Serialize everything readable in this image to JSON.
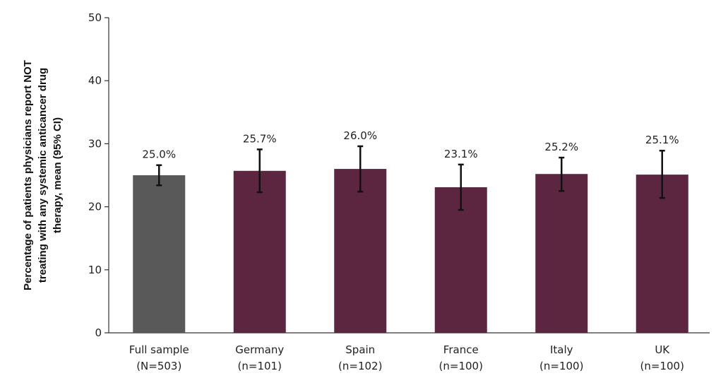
{
  "chart_data": {
    "type": "bar",
    "ylabel_lines": [
      "Percentage of patients physicians report NOT",
      "treating with any systemic anticancer drug",
      "therapy, mean (95% CI)"
    ],
    "ylim": [
      0,
      50
    ],
    "yticks": [
      "0",
      "10",
      "20",
      "30",
      "40",
      "50"
    ],
    "categories": [
      {
        "name": "Full sample",
        "n": "(N=503)"
      },
      {
        "name": "Germany",
        "n": "(n=101)"
      },
      {
        "name": "Spain",
        "n": "(n=102)"
      },
      {
        "name": "France",
        "n": "(n=100)"
      },
      {
        "name": "Italy",
        "n": "(n=100)"
      },
      {
        "name": "UK",
        "n": "(n=100)"
      }
    ],
    "values": [
      25.0,
      25.7,
      26.0,
      23.1,
      25.2,
      25.1
    ],
    "ci_low": [
      23.4,
      22.3,
      22.4,
      19.5,
      22.5,
      21.4
    ],
    "ci_high": [
      26.6,
      29.1,
      29.6,
      26.7,
      27.8,
      28.9
    ],
    "data_labels": [
      "25.0%",
      "25.7%",
      "26.0%",
      "23.1%",
      "25.2%",
      "25.1%"
    ],
    "colors": [
      "#595959",
      "#5c2640",
      "#5c2640",
      "#5c2640",
      "#5c2640",
      "#5c2640"
    ],
    "errorbar_color": "#111111",
    "grid": false
  }
}
